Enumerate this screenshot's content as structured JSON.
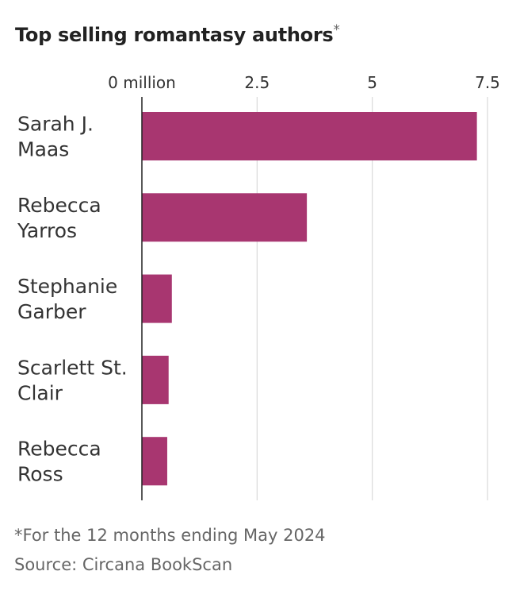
{
  "chart_data": {
    "type": "bar",
    "orientation": "horizontal",
    "title": "Top selling romantasy authors",
    "title_mark": "*",
    "categories": [
      "Sarah J. Maas",
      "Rebecca Yarros",
      "Stephanie Garber",
      "Scarlett St. Clair",
      "Rebecca Ross"
    ],
    "category_label_lines": [
      [
        "Sarah J.",
        "Maas"
      ],
      [
        "Rebecca",
        "Yarros"
      ],
      [
        "Stephanie",
        "Garber"
      ],
      [
        "Scarlett St.",
        "Clair"
      ],
      [
        "Rebecca",
        "Ross"
      ]
    ],
    "values": [
      7.27,
      3.58,
      0.65,
      0.58,
      0.55
    ],
    "unit": "million",
    "xlim": [
      0,
      7.5
    ],
    "xticks": [
      0,
      2.5,
      5,
      7.5
    ],
    "xtick_labels": [
      "0 million",
      "2.5",
      "5",
      "7.5"
    ],
    "grid": true,
    "bar_color": "#a83670",
    "axis_color": "#222222",
    "grid_color": "#d9d9d9"
  },
  "notes": {
    "footnote": "*For the 12 months ending May 2024",
    "source": "Source: Circana BookScan"
  }
}
